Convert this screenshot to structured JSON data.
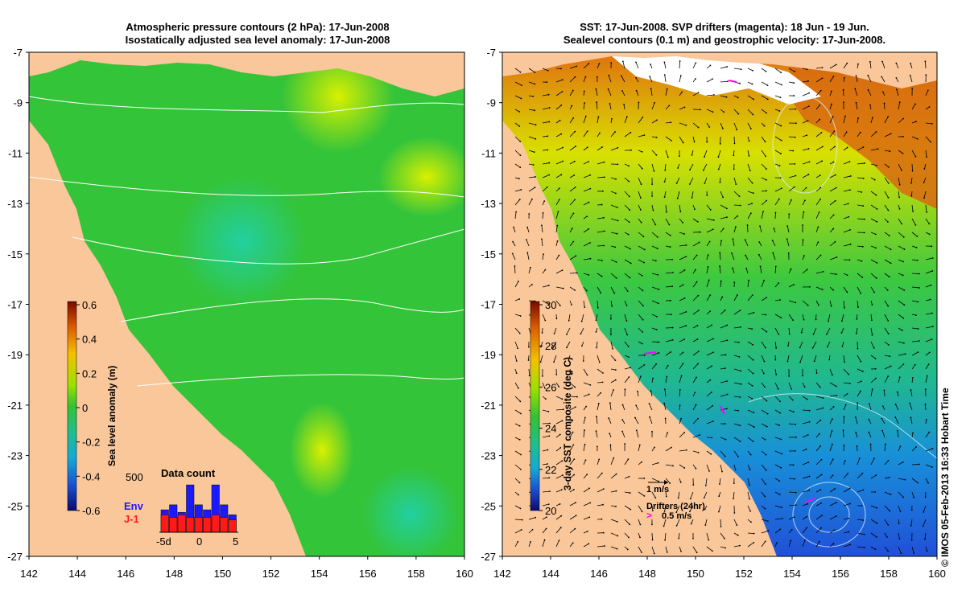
{
  "left_panel": {
    "title_line1": "Atmospheric pressure contours (2 hPa): 17-Jun-2008",
    "title_line2": "Isostatically adjusted sea level anomaly: 17-Jun-2008",
    "colorbar_label": "Sea level anomaly (m)",
    "colorbar_ticks": [
      "0.6",
      "0.4",
      "0.2",
      "0",
      "-0.2",
      "-0.4",
      "-0.6"
    ],
    "inset": {
      "title": "Data count",
      "ymax_label": "500",
      "legend_env": "Env",
      "legend_j1": "J-1",
      "x_ticks": [
        "-5d",
        "0",
        "5"
      ],
      "colors": {
        "env": "#1a1aff",
        "j1": "#ff1a1a"
      }
    }
  },
  "right_panel": {
    "title_line1": "SST: 17-Jun-2008. SVP drifters (magenta): 18 Jun - 19 Jun.",
    "title_line2": "Sealevel contours (0.1 m) and geostrophic velocity: 17-Jun-2008.",
    "colorbar_label": "3-day SST composite (deg C)",
    "colorbar_ticks": [
      "30",
      "28",
      "26",
      "24",
      "22",
      "20"
    ],
    "scale_label": "1 m/s",
    "drifters_label": "Drifters (24hr)",
    "drifters_speed": "0.5 m/s"
  },
  "axes": {
    "lat_ticks": [
      "-7",
      "-9",
      "-11",
      "-13",
      "-15",
      "-17",
      "-19",
      "-21",
      "-23",
      "-25",
      "-27"
    ],
    "lon_ticks": [
      "142",
      "144",
      "146",
      "148",
      "150",
      "152",
      "154",
      "156",
      "158",
      "160"
    ]
  },
  "footer": "© IMOS 05-Feb-2013 16:33 Hobart Time",
  "colors": {
    "land": "#f9c79a",
    "drifter": "#ff00ff"
  }
}
